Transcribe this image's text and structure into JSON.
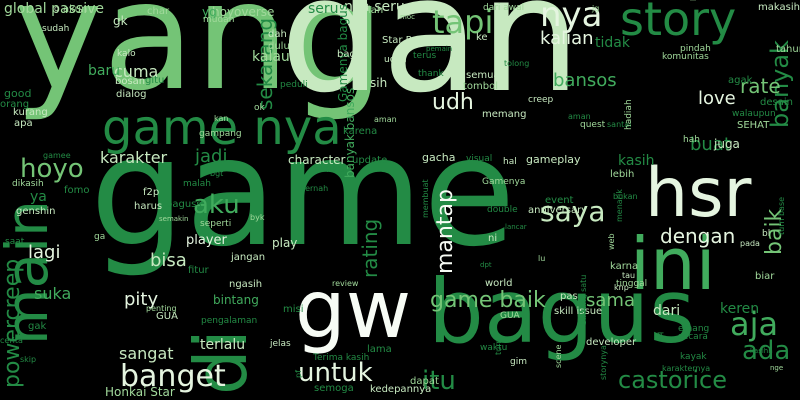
{
  "palette": {
    "background": "#000000",
    "deep": "#006d2c",
    "dark": "#238b45",
    "mid": "#41ab5d",
    "light": "#74c476",
    "pale": "#a1d99b",
    "paler": "#c7e9c0",
    "lightest": "#e5f5e0"
  },
  "words": [
    {
      "text": "yang",
      "color": "#74c476",
      "vertical": false
    },
    {
      "text": "dan",
      "color": "#c7e9c0",
      "vertical": false
    },
    {
      "text": "game",
      "color": "#238b45",
      "vertical": false
    },
    {
      "text": "hsr",
      "color": "#e5f5e0",
      "vertical": false
    },
    {
      "text": "bagus",
      "color": "#238b45",
      "vertical": false
    },
    {
      "text": "ini",
      "color": "#41ab5d",
      "vertical": false
    },
    {
      "text": "gw",
      "color": "#f7fcf5",
      "vertical": false
    },
    {
      "text": "main",
      "color": "#238b45",
      "vertical": true
    },
    {
      "text": "di",
      "color": "#238b45",
      "vertical": true
    },
    {
      "text": "game nya",
      "color": "#238b45",
      "vertical": false
    },
    {
      "text": "story",
      "color": "#238b45",
      "vertical": false
    },
    {
      "text": "nya",
      "color": "#e5f5e0",
      "vertical": false
    },
    {
      "text": "tapi",
      "color": "#74c476",
      "vertical": false
    },
    {
      "text": "saya",
      "color": "#c7e9c0",
      "vertical": false
    },
    {
      "text": "aja",
      "color": "#41ab5d",
      "vertical": false
    },
    {
      "text": "banget",
      "color": "#e5f5e0",
      "vertical": false
    },
    {
      "text": "untuk",
      "color": "#e5f5e0",
      "vertical": false
    },
    {
      "text": "castorice",
      "color": "#238b45",
      "vertical": false
    },
    {
      "text": "hoyo",
      "color": "#74c476",
      "vertical": false
    },
    {
      "text": "aku",
      "color": "#41ab5d",
      "vertical": false
    },
    {
      "text": "powercreep",
      "color": "#238b45",
      "vertical": true
    },
    {
      "text": "itu",
      "color": "#238b45",
      "vertical": false
    },
    {
      "text": "ada",
      "color": "#238b45",
      "vertical": false
    },
    {
      "text": "banyak",
      "color": "#238b45",
      "vertical": true
    },
    {
      "text": "baik",
      "color": "#74c476",
      "vertical": true
    },
    {
      "text": "game baik",
      "color": "#74c476",
      "vertical": false
    },
    {
      "text": "rate",
      "color": "#74c476",
      "vertical": false
    },
    {
      "text": "udh",
      "color": "#e5f5e0",
      "vertical": false
    },
    {
      "text": "bansos",
      "color": "#41ab5d",
      "vertical": false
    },
    {
      "text": "kalian",
      "color": "#e5f5e0",
      "vertical": false
    },
    {
      "text": "love",
      "color": "#e5f5e0",
      "vertical": false
    },
    {
      "text": "buat",
      "color": "#238b45",
      "vertical": false
    },
    {
      "text": "dengan",
      "color": "#e5f5e0",
      "vertical": false
    },
    {
      "text": "karakter",
      "color": "#c7e9c0",
      "vertical": false
    },
    {
      "text": "jadi",
      "color": "#238b45",
      "vertical": false
    },
    {
      "text": "mantap",
      "color": "#f7fcf5",
      "vertical": true
    },
    {
      "text": "rating",
      "color": "#238b45",
      "vertical": true
    },
    {
      "text": "bisa",
      "color": "#c7e9c0",
      "vertical": false
    },
    {
      "text": "lagi",
      "color": "#e5f5e0",
      "vertical": false
    },
    {
      "text": "pity",
      "color": "#e5f5e0",
      "vertical": false
    },
    {
      "text": "suka",
      "color": "#41ab5d",
      "vertical": false
    },
    {
      "text": "sangat",
      "color": "#c7e9c0",
      "vertical": false
    },
    {
      "text": "sama",
      "color": "#74c476",
      "vertical": false
    },
    {
      "text": "keren",
      "color": "#238b45",
      "vertical": false
    },
    {
      "text": "dari",
      "color": "#c7e9c0",
      "vertical": false
    },
    {
      "text": "cuma",
      "color": "#c7e9c0",
      "vertical": false
    },
    {
      "text": "baru",
      "color": "#41ab5d",
      "vertical": false
    },
    {
      "text": "sekarang",
      "color": "#238b45",
      "vertical": true
    },
    {
      "text": "kalau",
      "color": "#a1d99b",
      "vertical": false
    },
    {
      "text": "seru",
      "color": "#238b45",
      "vertical": false
    },
    {
      "text": "nya seru",
      "color": "#c7e9c0",
      "vertical": false
    },
    {
      "text": "Gamenya bagus",
      "color": "#238b45",
      "vertical": true
    },
    {
      "text": "global passive",
      "color": "#a1d99b",
      "vertical": false
    },
    {
      "text": "tidak",
      "color": "#238b45",
      "vertical": false
    },
    {
      "text": "juga",
      "color": "#c7e9c0",
      "vertical": false
    },
    {
      "text": "kasih",
      "color": "#238b45",
      "vertical": false
    },
    {
      "text": "ya",
      "color": "#238b45",
      "vertical": false
    },
    {
      "text": "bintang",
      "color": "#41ab5d",
      "vertical": false
    },
    {
      "text": "terlalu",
      "color": "#c7e9c0",
      "vertical": false
    },
    {
      "text": "play",
      "color": "#c7e9c0",
      "vertical": false
    },
    {
      "text": "player",
      "color": "#e5f5e0",
      "vertical": false
    },
    {
      "text": "character",
      "color": "#c7e9c0",
      "vertical": false
    },
    {
      "text": "update",
      "color": "#238b45",
      "vertical": false
    },
    {
      "text": "gacha",
      "color": "#c7e9c0",
      "vertical": false
    },
    {
      "text": "visual",
      "color": "#238b45",
      "vertical": false
    },
    {
      "text": "hal",
      "color": "#c7e9c0",
      "vertical": false
    },
    {
      "text": "gameplay",
      "color": "#c7e9c0",
      "vertical": false
    },
    {
      "text": "event",
      "color": "#238b45",
      "vertical": false
    },
    {
      "text": "anniversary",
      "color": "#c7e9c0",
      "vertical": false
    },
    {
      "text": "skill issue",
      "color": "#c7e9c0",
      "vertical": false
    },
    {
      "text": "pas",
      "color": "#c7e9c0",
      "vertical": false
    },
    {
      "text": "world",
      "color": "#c7e9c0",
      "vertical": false
    },
    {
      "text": "developer",
      "color": "#c7e9c0",
      "vertical": false
    },
    {
      "text": "dapat",
      "color": "#a1d99b",
      "vertical": false
    },
    {
      "text": "kedepannya",
      "color": "#c7e9c0",
      "vertical": false
    },
    {
      "text": "semoga",
      "color": "#238b45",
      "vertical": false
    },
    {
      "text": "lama",
      "color": "#238b45",
      "vertical": false
    },
    {
      "text": "jelas",
      "color": "#c7e9c0",
      "vertical": false
    },
    {
      "text": "Honkai Star",
      "color": "#a1d99b",
      "vertical": false
    },
    {
      "text": "Star Rail",
      "color": "#c7e9c0",
      "vertical": false
    },
    {
      "text": "hoyoverse",
      "color": "#a1d99b",
      "vertical": false
    },
    {
      "text": "dah",
      "color": "#c7e9c0",
      "vertical": false
    },
    {
      "text": "dulu",
      "color": "#a1d99b",
      "vertical": false
    },
    {
      "text": "lah",
      "color": "#a1d99b",
      "vertical": false
    },
    {
      "text": "dari awal",
      "color": "#a1d99b",
      "vertical": false
    },
    {
      "text": "sudah",
      "color": "#c7e9c0",
      "vertical": false
    },
    {
      "text": "akun",
      "color": "#a1d99b",
      "vertical": false
    },
    {
      "text": "gk",
      "color": "#c7e9c0",
      "vertical": false
    },
    {
      "text": "char",
      "color": "#a1d99b",
      "vertical": false
    },
    {
      "text": "yg",
      "color": "#41ab5d",
      "vertical": false
    },
    {
      "text": "semua",
      "color": "#c7e9c0",
      "vertical": false
    },
    {
      "text": "tombol",
      "color": "#a1d99b",
      "vertical": false
    },
    {
      "text": "memang",
      "color": "#c7e9c0",
      "vertical": false
    },
    {
      "text": "creep",
      "color": "#c7e9c0",
      "vertical": false
    },
    {
      "text": "quest",
      "color": "#a1d99b",
      "vertical": false
    },
    {
      "text": "hah",
      "color": "#a1d99b",
      "vertical": false
    },
    {
      "text": "SEHAT",
      "color": "#a1d99b",
      "vertical": false
    },
    {
      "text": "walaupun",
      "color": "#238b45",
      "vertical": false
    },
    {
      "text": "agak",
      "color": "#238b45",
      "vertical": false
    },
    {
      "text": "desain",
      "color": "#238b45",
      "vertical": false
    },
    {
      "text": "tahun",
      "color": "#a1d99b",
      "vertical": false
    },
    {
      "text": "makasih",
      "color": "#c7e9c0",
      "vertical": false
    },
    {
      "text": "pindah",
      "color": "#a1d99b",
      "vertical": false
    },
    {
      "text": "komunitas",
      "color": "#a1d99b",
      "vertical": false
    },
    {
      "text": "bosan",
      "color": "#c7e9c0",
      "vertical": false
    },
    {
      "text": "dialog",
      "color": "#c7e9c0",
      "vertical": false
    },
    {
      "text": "kurang",
      "color": "#c7e9c0",
      "vertical": false
    },
    {
      "text": "apa",
      "color": "#c7e9c0",
      "vertical": false
    },
    {
      "text": "good",
      "color": "#238b45",
      "vertical": false
    },
    {
      "text": "orang",
      "color": "#238b45",
      "vertical": false
    },
    {
      "text": "fomo",
      "color": "#238b45",
      "vertical": false
    },
    {
      "text": "genshin",
      "color": "#c7e9c0",
      "vertical": false
    },
    {
      "text": "f2p",
      "color": "#c7e9c0",
      "vertical": false
    },
    {
      "text": "harus",
      "color": "#c7e9c0",
      "vertical": false
    },
    {
      "text": "baguss",
      "color": "#238b45",
      "vertical": false
    },
    {
      "text": "seperti",
      "color": "#a1d99b",
      "vertical": false
    },
    {
      "text": "malah",
      "color": "#238b45",
      "vertical": false
    },
    {
      "text": "fitur",
      "color": "#238b45",
      "vertical": false
    },
    {
      "text": "jangan",
      "color": "#c7e9c0",
      "vertical": false
    },
    {
      "text": "ngasih",
      "color": "#c7e9c0",
      "vertical": false
    },
    {
      "text": "GUA",
      "color": "#c7e9c0",
      "vertical": false
    },
    {
      "text": "misi",
      "color": "#238b45",
      "vertical": false
    },
    {
      "text": "karena",
      "color": "#238b45",
      "vertical": false
    },
    {
      "text": "sih",
      "color": "#c7e9c0",
      "vertical": false
    },
    {
      "text": "thank",
      "color": "#238b45",
      "vertical": false
    },
    {
      "text": "terus",
      "color": "#238b45",
      "vertical": false
    },
    {
      "text": "udah",
      "color": "#c7e9c0",
      "vertical": false
    },
    {
      "text": "bagi",
      "color": "#c7e9c0",
      "vertical": false
    },
    {
      "text": "ke",
      "color": "#c7e9c0",
      "vertical": false
    },
    {
      "text": "gitu",
      "color": "#238b45",
      "vertical": false
    },
    {
      "text": "mudah",
      "color": "#a1d99b",
      "vertical": false
    },
    {
      "text": "kalo",
      "color": "#c7e9c0",
      "vertical": false
    },
    {
      "text": "ok",
      "color": "#a1d99b",
      "vertical": false
    },
    {
      "text": "gampang",
      "color": "#a1d99b",
      "vertical": false
    },
    {
      "text": "peduli",
      "color": "#238b45",
      "vertical": false
    },
    {
      "text": "banyak bansos",
      "color": "#41ab5d",
      "vertical": true
    },
    {
      "text": "lebih",
      "color": "#a1d99b",
      "vertical": false
    },
    {
      "text": "GUA",
      "color": "#a1d99b",
      "vertical": false
    },
    {
      "text": "RPG",
      "color": "#238b45",
      "vertical": false
    },
    {
      "text": "Gamenya",
      "color": "#a1d99b",
      "vertical": false
    },
    {
      "text": "double",
      "color": "#238b45",
      "vertical": false
    },
    {
      "text": "ni",
      "color": "#c7e9c0",
      "vertical": false
    },
    {
      "text": "lu",
      "color": "#a1d99b",
      "vertical": false
    },
    {
      "text": "karna",
      "color": "#a1d99b",
      "vertical": false
    },
    {
      "text": "tau",
      "color": "#c7e9c0",
      "vertical": false
    },
    {
      "text": "tinggal",
      "color": "#a1d99b",
      "vertical": false
    },
    {
      "text": "biar",
      "color": "#a1d99b",
      "vertical": false
    },
    {
      "text": "bl",
      "color": "#c7e9c0",
      "vertical": false
    },
    {
      "text": "pada",
      "color": "#c7e9c0",
      "vertical": false
    },
    {
      "text": "emang",
      "color": "#238b45",
      "vertical": false
    },
    {
      "text": "secara",
      "color": "#238b45",
      "vertical": false
    },
    {
      "text": "kayak",
      "color": "#238b45",
      "vertical": false
    },
    {
      "text": "waktu",
      "color": "#238b45",
      "vertical": false
    },
    {
      "text": "gim",
      "color": "#c7e9c0",
      "vertical": false
    },
    {
      "text": "Terima kasih",
      "color": "#238b45",
      "vertical": false
    },
    {
      "text": "skip",
      "color": "#238b45",
      "vertical": false
    },
    {
      "text": "cerita",
      "color": "#238b45",
      "vertical": false
    },
    {
      "text": "gak",
      "color": "#238b45",
      "vertical": false
    },
    {
      "text": "saat",
      "color": "#238b45",
      "vertical": false
    },
    {
      "text": "ga",
      "color": "#a1d99b",
      "vertical": false
    },
    {
      "text": "dikasih",
      "color": "#a1d99b",
      "vertical": false
    },
    {
      "text": "gamee",
      "color": "#238b45",
      "vertical": false
    },
    {
      "text": "bgt",
      "color": "#238b45",
      "vertical": false
    },
    {
      "text": "pernah",
      "color": "#238b45",
      "vertical": false
    },
    {
      "text": "review",
      "color": "#a1d99b",
      "vertical": false
    },
    {
      "text": "penting",
      "color": "#a1d99b",
      "vertical": false
    },
    {
      "text": "pengalaman",
      "color": "#238b45",
      "vertical": false
    },
    {
      "text": "byk",
      "color": "#a1d99b",
      "vertical": false
    },
    {
      "text": "semakin",
      "color": "#a1d99b",
      "vertical": false
    },
    {
      "text": "pemain",
      "color": "#238b45",
      "vertical": false
    },
    {
      "text": "aman",
      "color": "#a1d99b",
      "vertical": false
    },
    {
      "text": "santai",
      "color": "#238b45",
      "vertical": false
    },
    {
      "text": "moc",
      "color": "#a1d99b",
      "vertical": false
    },
    {
      "text": "knp",
      "color": "#c7e9c0",
      "vertical": false
    },
    {
      "text": "dpt",
      "color": "#238b45",
      "vertical": false
    },
    {
      "text": "bukan",
      "color": "#238b45",
      "vertical": false
    },
    {
      "text": "lancar",
      "color": "#238b45",
      "vertical": false
    },
    {
      "text": "tolong",
      "color": "#238b45",
      "vertical": false
    },
    {
      "text": "jg",
      "color": "#a1d99b",
      "vertical": false
    },
    {
      "text": "g",
      "color": "#c7e9c0",
      "vertical": false
    },
    {
      "text": "kan",
      "color": "#a1d99b",
      "vertical": false
    },
    {
      "text": "hadiah",
      "color": "#a1d99b",
      "vertical": true
    },
    {
      "text": "menarik",
      "color": "#238b45",
      "vertical": true
    },
    {
      "text": "membuat",
      "color": "#238b45",
      "vertical": true
    },
    {
      "text": "scene",
      "color": "#a1d99b",
      "vertical": true
    },
    {
      "text": "turn",
      "color": "#238b45",
      "vertical": true
    },
    {
      "text": "storynya",
      "color": "#238b45",
      "vertical": true
    },
    {
      "text": "tq",
      "color": "#238b45",
      "vertical": true
    },
    {
      "text": "bintang satu",
      "color": "#238b45",
      "vertical": true
    },
    {
      "text": "pf",
      "color": "#238b45",
      "vertical": true
    },
    {
      "text": "turn base",
      "color": "#238b45",
      "vertical": true
    },
    {
      "text": "web",
      "color": "#a1d99b",
      "vertical": true
    },
    {
      "text": "kedepan",
      "color": "#a1d99b",
      "vertical": true
    },
    {
      "text": "nge",
      "color": "#a1d99b",
      "vertical": false
    },
    {
      "text": "kasihh",
      "color": "#238b45",
      "vertical": false
    },
    {
      "text": "karakternya",
      "color": "#238b45",
      "vertical": false
    },
    {
      "text": "aman",
      "color": "#238b45",
      "vertical": false
    },
    {
      "text": "renderer",
      "color": "#238b45",
      "vertical": false
    }
  ]
}
